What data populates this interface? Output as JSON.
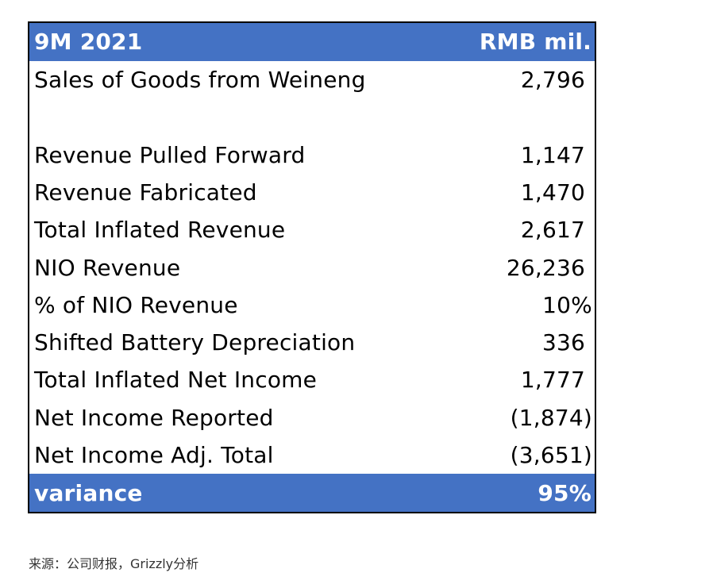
{
  "table": {
    "header": {
      "label": "9M 2021",
      "value": "RMB mil."
    },
    "rows": [
      {
        "label": "Sales of Goods from Weineng",
        "value": "2,796"
      },
      {
        "label": "",
        "value": ""
      },
      {
        "label": "Revenue Pulled Forward",
        "value": "1,147"
      },
      {
        "label": "Revenue Fabricated",
        "value": "1,470"
      },
      {
        "label": "Total Inflated Revenue",
        "value": "2,617"
      },
      {
        "label": "NIO Revenue",
        "value": "26,236"
      },
      {
        "label": "% of NIO Revenue",
        "value": "10%"
      },
      {
        "label": "Shifted Battery Depreciation",
        "value": "336"
      },
      {
        "label": "Total Inflated Net Income",
        "value": "1,777"
      },
      {
        "label": "Net Income Reported",
        "value": "(1,874)"
      },
      {
        "label": "Net Income Adj. Total",
        "value": "(3,651)"
      }
    ],
    "footer": {
      "label": "variance",
      "value": "95%"
    }
  },
  "caption": "来源：公司财报，Grizzly分析",
  "colors": {
    "band": "#4472c4",
    "band_text": "#ffffff",
    "border": "#000000"
  }
}
